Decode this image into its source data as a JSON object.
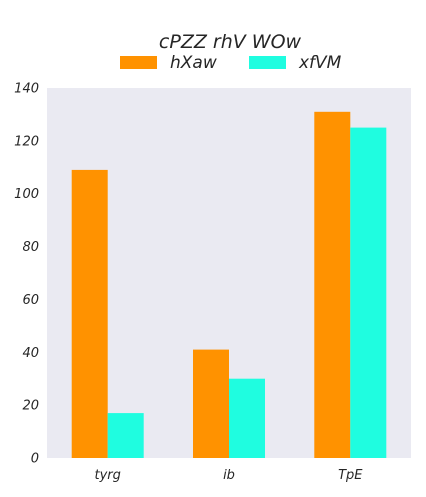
{
  "chart_data": {
    "type": "bar",
    "title": "cPZZ   rhV WOw",
    "categories": [
      "tyrg",
      "ib",
      "TpE"
    ],
    "series": [
      {
        "name": "hXaw",
        "values": [
          109,
          41,
          131
        ]
      },
      {
        "name": "xfVM",
        "values": [
          17,
          30,
          125
        ]
      }
    ],
    "ylim": [
      0,
      140
    ],
    "yticks": [
      "0",
      "20",
      "40",
      "60",
      "80",
      "100",
      "120",
      "140"
    ],
    "grid": false,
    "legend_position": "top-center",
    "colors": {
      "hXaw": "#ff9200",
      "xfVM": "#1ffde0",
      "plot_bg": "#eaeaf2"
    }
  }
}
